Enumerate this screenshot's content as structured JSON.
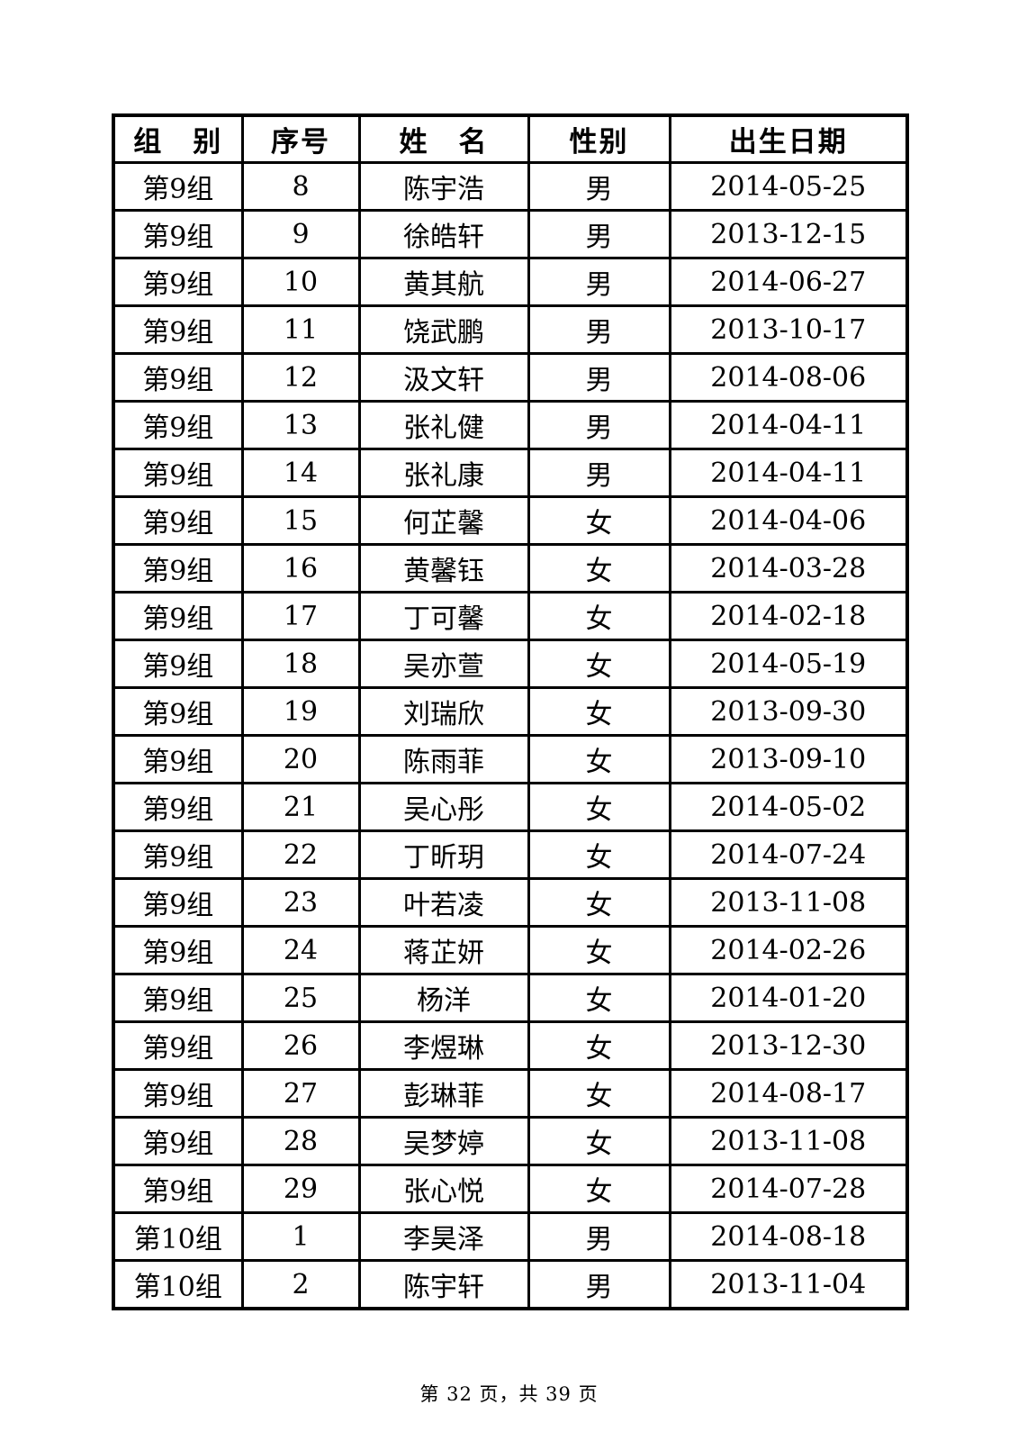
{
  "table": {
    "headers": [
      "组　别",
      "序号",
      "姓　名",
      "性别",
      "出生日期"
    ],
    "rows": [
      [
        "第9组",
        "8",
        "陈宇浩",
        "男",
        "2014-05-25"
      ],
      [
        "第9组",
        "9",
        "徐皓轩",
        "男",
        "2013-12-15"
      ],
      [
        "第9组",
        "10",
        "黄其航",
        "男",
        "2014-06-27"
      ],
      [
        "第9组",
        "11",
        "饶武鹏",
        "男",
        "2013-10-17"
      ],
      [
        "第9组",
        "12",
        "汲文轩",
        "男",
        "2014-08-06"
      ],
      [
        "第9组",
        "13",
        "张礼健",
        "男",
        "2014-04-11"
      ],
      [
        "第9组",
        "14",
        "张礼康",
        "男",
        "2014-04-11"
      ],
      [
        "第9组",
        "15",
        "何芷馨",
        "女",
        "2014-04-06"
      ],
      [
        "第9组",
        "16",
        "黄馨钰",
        "女",
        "2014-03-28"
      ],
      [
        "第9组",
        "17",
        "丁可馨",
        "女",
        "2014-02-18"
      ],
      [
        "第9组",
        "18",
        "吴亦萱",
        "女",
        "2014-05-19"
      ],
      [
        "第9组",
        "19",
        "刘瑞欣",
        "女",
        "2013-09-30"
      ],
      [
        "第9组",
        "20",
        "陈雨菲",
        "女",
        "2013-09-10"
      ],
      [
        "第9组",
        "21",
        "吴心彤",
        "女",
        "2014-05-02"
      ],
      [
        "第9组",
        "22",
        "丁昕玥",
        "女",
        "2014-07-24"
      ],
      [
        "第9组",
        "23",
        "叶若凌",
        "女",
        "2013-11-08"
      ],
      [
        "第9组",
        "24",
        "蒋芷妍",
        "女",
        "2014-02-26"
      ],
      [
        "第9组",
        "25",
        "杨洋",
        "女",
        "2014-01-20"
      ],
      [
        "第9组",
        "26",
        "李煜琳",
        "女",
        "2013-12-30"
      ],
      [
        "第9组",
        "27",
        "彭琳菲",
        "女",
        "2014-08-17"
      ],
      [
        "第9组",
        "28",
        "吴梦婷",
        "女",
        "2013-11-08"
      ],
      [
        "第9组",
        "29",
        "张心悦",
        "女",
        "2014-07-28"
      ],
      [
        "第10组",
        "1",
        "李昊泽",
        "男",
        "2014-08-18"
      ],
      [
        "第10组",
        "2",
        "陈宇轩",
        "男",
        "2013-11-04"
      ]
    ]
  },
  "footer": {
    "page_info": "第 32 页，共 39 页"
  }
}
